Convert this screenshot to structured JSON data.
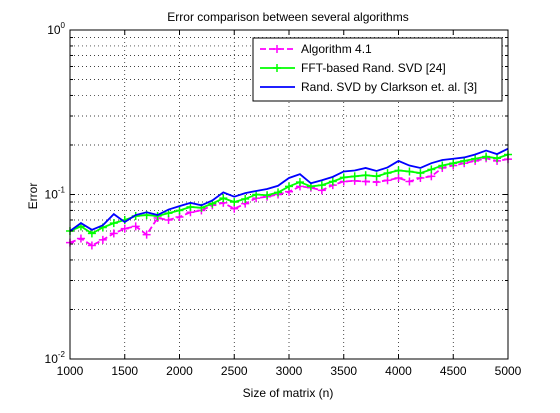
{
  "chart_data": {
    "type": "line",
    "title": "Error comparison between several algorithms",
    "xlabel": "Size of matrix (n)",
    "ylabel": "Error",
    "xlim": [
      1000,
      5000
    ],
    "ylim": [
      0.01,
      1
    ],
    "yscale": "log",
    "grid": true,
    "legend_position": "top-right",
    "x_ticks": [
      "1000",
      "1500",
      "2000",
      "2500",
      "3000",
      "3500",
      "4000",
      "4500",
      "5000"
    ],
    "y_ticks": [
      {
        "base": "10",
        "exp": "-2"
      },
      {
        "base": "10",
        "exp": "-1"
      },
      {
        "base": "10",
        "exp": "0"
      }
    ],
    "x": [
      1000,
      1100,
      1200,
      1300,
      1400,
      1500,
      1600,
      1700,
      1800,
      1900,
      2000,
      2100,
      2200,
      2300,
      2400,
      2500,
      2600,
      2700,
      2800,
      2900,
      3000,
      3100,
      3200,
      3300,
      3400,
      3500,
      3600,
      3700,
      3800,
      3900,
      4000,
      4100,
      4200,
      4300,
      4400,
      4500,
      4600,
      4700,
      4800,
      4900,
      5000
    ],
    "series": [
      {
        "name": "Algorithm 4.1",
        "color": "#ff00ff",
        "line_style": "dashed",
        "marker": "plus",
        "values": [
          0.051,
          0.054,
          0.049,
          0.053,
          0.058,
          0.062,
          0.064,
          0.057,
          0.072,
          0.07,
          0.073,
          0.078,
          0.08,
          0.086,
          0.089,
          0.082,
          0.088,
          0.095,
          0.097,
          0.1,
          0.104,
          0.112,
          0.11,
          0.106,
          0.114,
          0.12,
          0.121,
          0.12,
          0.119,
          0.122,
          0.126,
          0.12,
          0.126,
          0.129,
          0.145,
          0.15,
          0.155,
          0.16,
          0.166,
          0.16,
          0.164
        ]
      },
      {
        "name": "FFT-based Rand. SVD [24]",
        "color": "#00ff00",
        "line_style": "solid",
        "marker": "plus",
        "values": [
          0.06,
          0.064,
          0.058,
          0.063,
          0.067,
          0.07,
          0.074,
          0.075,
          0.074,
          0.077,
          0.08,
          0.084,
          0.083,
          0.088,
          0.095,
          0.09,
          0.094,
          0.1,
          0.099,
          0.103,
          0.112,
          0.119,
          0.112,
          0.114,
          0.12,
          0.127,
          0.129,
          0.131,
          0.129,
          0.135,
          0.14,
          0.138,
          0.135,
          0.142,
          0.15,
          0.155,
          0.16,
          0.165,
          0.17,
          0.166,
          0.175
        ]
      },
      {
        "name": "Rand. SVD by Clarkson et. al. [3]",
        "color": "#0000ff",
        "line_style": "solid",
        "marker": "none",
        "values": [
          0.06,
          0.067,
          0.061,
          0.065,
          0.076,
          0.068,
          0.075,
          0.078,
          0.075,
          0.081,
          0.085,
          0.089,
          0.086,
          0.092,
          0.103,
          0.097,
          0.102,
          0.105,
          0.108,
          0.113,
          0.126,
          0.133,
          0.117,
          0.122,
          0.128,
          0.138,
          0.14,
          0.145,
          0.139,
          0.146,
          0.16,
          0.15,
          0.145,
          0.155,
          0.162,
          0.165,
          0.168,
          0.175,
          0.185,
          0.176,
          0.19
        ]
      }
    ]
  }
}
